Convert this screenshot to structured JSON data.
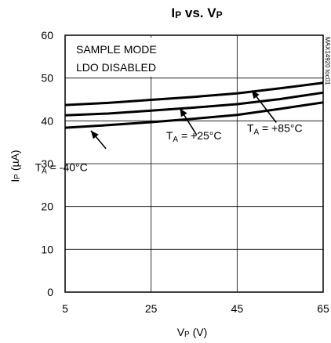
{
  "chart_data": {
    "type": "line",
    "title": {
      "main": "I",
      "main_sub": "P",
      "mid": " vs. V",
      "mid_sub": "P"
    },
    "xlabel": {
      "main": "V",
      "sub": "P",
      "unit": " (V)"
    },
    "ylabel": {
      "main": "I",
      "sub": "P",
      "unit": " (µA)"
    },
    "xlim": [
      5,
      65
    ],
    "ylim": [
      0,
      60
    ],
    "x_ticks": [
      5,
      25,
      45,
      65
    ],
    "y_ticks": [
      0,
      10,
      20,
      30,
      40,
      50,
      60
    ],
    "x_tick_labels": [
      "5",
      "25",
      "45",
      "65"
    ],
    "y_tick_labels": [
      "0",
      "10",
      "20",
      "30",
      "40",
      "50",
      "60"
    ],
    "grid": true,
    "notes": [
      "SAMPLE MODE",
      "LDO DISABLED"
    ],
    "side_label": "MAX14920 toc01",
    "series": [
      {
        "id": "t-40",
        "label": {
          "pre": "T",
          "sub": "A",
          "post": " = -40°C"
        },
        "x": [
          5,
          15,
          25,
          35,
          45,
          55,
          65
        ],
        "y": [
          38.4,
          39.0,
          39.7,
          40.5,
          41.4,
          42.8,
          44.3
        ],
        "label_anchor": [
          -2,
          28.3
        ],
        "arrow_from": [
          14.5,
          33.5
        ],
        "arrow_to": [
          11.0,
          37.7
        ]
      },
      {
        "id": "t+25",
        "label": {
          "pre": "T",
          "sub": "A",
          "post": " = +25°C"
        },
        "x": [
          5,
          15,
          25,
          35,
          45,
          55,
          65
        ],
        "y": [
          41.3,
          41.7,
          42.4,
          43.1,
          43.9,
          45.1,
          46.6
        ],
        "label_anchor": [
          28.5,
          35.7
        ],
        "arrow_from": [
          35.6,
          36.7
        ],
        "arrow_to": [
          31.7,
          42.9
        ]
      },
      {
        "id": "t+85",
        "label": {
          "pre": "T",
          "sub": "A",
          "post": " = +85°C"
        },
        "x": [
          5,
          15,
          25,
          35,
          45,
          55,
          65
        ],
        "y": [
          43.7,
          44.2,
          44.9,
          45.6,
          46.4,
          47.6,
          48.9
        ],
        "label_anchor": [
          47.3,
          37.4
        ],
        "arrow_from": [
          54.1,
          39.6
        ],
        "arrow_to": [
          48.4,
          47.1
        ]
      }
    ]
  }
}
